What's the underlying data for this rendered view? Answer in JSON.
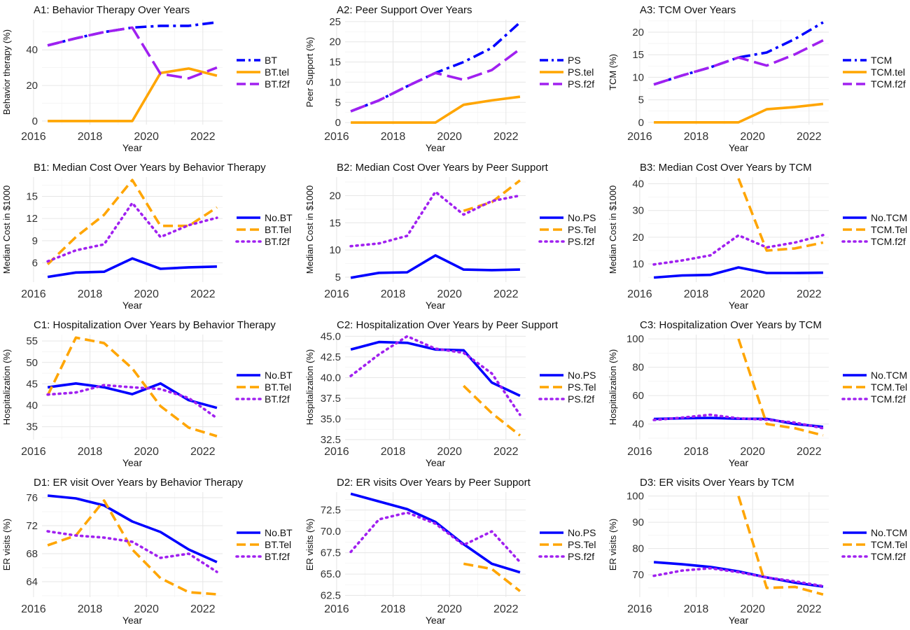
{
  "x_axis": {
    "xlim": [
      2016.3,
      2022.7
    ],
    "ticks": [
      2016,
      2018,
      2020,
      2022
    ],
    "label": "Year"
  },
  "colors": {
    "overall": "#0000ff",
    "no": "#0000ff",
    "tel": "#ffa500",
    "f2f": "#a020f0"
  },
  "chart_data": [
    {
      "type": "line",
      "title": "A1: Behavior Therapy Over Years",
      "xlabel": "Year",
      "ylabel": "Behavior therapy (%)",
      "ylim": [
        -2,
        57
      ],
      "yticks": [
        0,
        20,
        40
      ],
      "grid": true,
      "legend": "right",
      "x": [
        2016.5,
        2017.5,
        2018.5,
        2019.5,
        2020.5,
        2021.5,
        2022.5
      ],
      "series": [
        {
          "name": "BT",
          "style": "dashdot",
          "color": "#0000ff",
          "values": [
            42.5,
            46.5,
            50,
            52.5,
            53.5,
            53.5,
            55.5
          ]
        },
        {
          "name": "BT.tel",
          "style": "solid",
          "color": "#ffa500",
          "values": [
            0,
            0,
            0,
            0,
            27,
            29.5,
            25.5
          ]
        },
        {
          "name": "BT.f2f",
          "style": "longdash",
          "color": "#a020f0",
          "values": [
            42.5,
            46.5,
            50,
            52.5,
            26.5,
            24,
            30
          ]
        }
      ]
    },
    {
      "type": "line",
      "title": "A2: Peer Support Over Years",
      "xlabel": "Year",
      "ylabel": "Peer Support (%)",
      "ylim": [
        -0.5,
        25.5
      ],
      "yticks": [
        0,
        5,
        10,
        15,
        20,
        25
      ],
      "grid": true,
      "legend": "right",
      "x": [
        2016.5,
        2017.5,
        2018.5,
        2019.5,
        2020.5,
        2021.5,
        2022.5
      ],
      "series": [
        {
          "name": "PS",
          "style": "dashdot",
          "color": "#0000ff",
          "values": [
            2.8,
            5.5,
            9,
            12.3,
            15,
            18.5,
            24.8
          ]
        },
        {
          "name": "PS.tel",
          "style": "solid",
          "color": "#ffa500",
          "values": [
            0,
            0,
            0,
            0,
            4.4,
            5.5,
            6.4
          ]
        },
        {
          "name": "PS.f2f",
          "style": "longdash",
          "color": "#a020f0",
          "values": [
            2.8,
            5.5,
            9,
            12.3,
            10.6,
            13,
            18.2
          ]
        }
      ]
    },
    {
      "type": "line",
      "title": "A3: TCM Over Years",
      "xlabel": "Year",
      "ylabel": "TCM (%)",
      "ylim": [
        -0.5,
        22.8
      ],
      "yticks": [
        0,
        5,
        10,
        15,
        20
      ],
      "grid": true,
      "legend": "right",
      "x": [
        2016.5,
        2017.5,
        2018.5,
        2019.5,
        2020.5,
        2021.5,
        2022.5
      ],
      "series": [
        {
          "name": "TCM",
          "style": "dashdot",
          "color": "#0000ff",
          "values": [
            8.4,
            10.4,
            12.2,
            14.4,
            15.5,
            18.5,
            22.2
          ]
        },
        {
          "name": "TCM.tel",
          "style": "solid",
          "color": "#ffa500",
          "values": [
            0,
            0,
            0,
            0,
            2.9,
            3.4,
            4.1
          ]
        },
        {
          "name": "TCM.f2f",
          "style": "longdash",
          "color": "#a020f0",
          "values": [
            8.4,
            10.4,
            12.2,
            14.4,
            12.6,
            15.1,
            18.2
          ]
        }
      ]
    },
    {
      "type": "line",
      "title": "B1: Median Cost Over Years by Behavior Therapy",
      "xlabel": "Year",
      "ylabel": "Median Cost in $1000",
      "ylim": [
        3.4,
        17.6
      ],
      "yticks": [
        6,
        9,
        12,
        15
      ],
      "grid": true,
      "legend": "right",
      "x": [
        2016.5,
        2017.5,
        2018.5,
        2019.5,
        2020.5,
        2021.5,
        2022.5
      ],
      "series": [
        {
          "name": "No.BT",
          "style": "solid",
          "color": "#0000ff",
          "values": [
            4.1,
            4.7,
            4.8,
            6.6,
            5.2,
            5.4,
            5.5
          ]
        },
        {
          "name": "BT.Tel",
          "style": "dashed",
          "color": "#ffa500",
          "values": [
            5.8,
            9.5,
            12.5,
            17.2,
            11,
            11,
            13.5
          ]
        },
        {
          "name": "BT.f2f",
          "style": "dotted",
          "color": "#a020f0",
          "values": [
            6.2,
            7.7,
            8.5,
            14.1,
            9.5,
            11.1,
            12.1
          ]
        }
      ]
    },
    {
      "type": "line",
      "title": "B2: Median Cost Over Years by Peer Support",
      "xlabel": "Year",
      "ylabel": "Median Cost in $1000",
      "ylim": [
        4.1,
        23.4
      ],
      "yticks": [
        5,
        10,
        15,
        20
      ],
      "grid": true,
      "legend": "right",
      "x": [
        2016.5,
        2017.5,
        2018.5,
        2019.5,
        2020.5,
        2021.5,
        2022.5
      ],
      "series": [
        {
          "name": "No.PS",
          "style": "solid",
          "color": "#0000ff",
          "values": [
            4.9,
            5.8,
            5.9,
            9,
            6.4,
            6.3,
            6.4
          ]
        },
        {
          "name": "PS.Tel",
          "style": "dashed",
          "color": "#ffa500",
          "values": [
            null,
            null,
            null,
            null,
            17.2,
            18.8,
            22.8
          ]
        },
        {
          "name": "PS.f2f",
          "style": "dotted",
          "color": "#a020f0",
          "values": [
            10.7,
            11.2,
            12.6,
            20.7,
            16.5,
            19,
            20
          ]
        }
      ]
    },
    {
      "type": "line",
      "title": "B3: Median Cost Over Years by TCM",
      "xlabel": "Year",
      "ylabel": "Median Cost in $1000",
      "ylim": [
        3.2,
        42.5
      ],
      "yticks": [
        10,
        20,
        30,
        40
      ],
      "grid": true,
      "legend": "right",
      "x": [
        2016.5,
        2017.5,
        2018.5,
        2019.5,
        2020.5,
        2021.5,
        2022.5
      ],
      "series": [
        {
          "name": "No.TCM",
          "style": "solid",
          "color": "#0000ff",
          "values": [
            4.9,
            5.7,
            5.9,
            8.7,
            6.6,
            6.6,
            6.7
          ]
        },
        {
          "name": "TCM.Tel",
          "style": "dashed",
          "color": "#ffa500",
          "values": [
            null,
            null,
            null,
            42,
            15,
            15.8,
            18
          ]
        },
        {
          "name": "TCM.f2f",
          "style": "dotted",
          "color": "#a020f0",
          "values": [
            9.8,
            11.3,
            13.2,
            20.7,
            16.2,
            18,
            20.8
          ]
        }
      ]
    },
    {
      "type": "line",
      "title": "C1: Hospitalization Over Years by Behavior Therapy",
      "xlabel": "Year",
      "ylabel": "Hospitalization (%)",
      "ylim": [
        32,
        56.5
      ],
      "yticks": [
        35,
        40,
        45,
        50,
        55
      ],
      "grid": true,
      "legend": "right",
      "x": [
        2016.5,
        2017.5,
        2018.5,
        2019.5,
        2020.5,
        2021.5,
        2022.5
      ],
      "series": [
        {
          "name": "No.BT",
          "style": "solid",
          "color": "#0000ff",
          "values": [
            44.2,
            45.1,
            44.2,
            42.6,
            45.1,
            41.2,
            39.4
          ]
        },
        {
          "name": "BT.Tel",
          "style": "dashed",
          "color": "#ffa500",
          "values": [
            42.3,
            55.8,
            54.5,
            48.6,
            39.8,
            34.8,
            32.8
          ]
        },
        {
          "name": "BT.f2f",
          "style": "dotted",
          "color": "#a020f0",
          "values": [
            42.5,
            43,
            44.7,
            44.2,
            43.8,
            41.7,
            37
          ]
        }
      ]
    },
    {
      "type": "line",
      "title": "C2: Hospitalization Over Years by Peer Support",
      "xlabel": "Year",
      "ylabel": "Hospitalization (%)",
      "ylim": [
        32.5,
        45.2
      ],
      "yticks": [
        32.5,
        35.0,
        37.5,
        40.0,
        42.5,
        45.0
      ],
      "ytick_labels": [
        "32.5",
        "35.0",
        "37.5",
        "40.0",
        "42.5",
        "45.0"
      ],
      "grid": true,
      "legend": "right",
      "x": [
        2016.5,
        2017.5,
        2018.5,
        2019.5,
        2020.5,
        2021.5,
        2022.5
      ],
      "series": [
        {
          "name": "No.PS",
          "style": "solid",
          "color": "#0000ff",
          "values": [
            43.4,
            44.3,
            44.2,
            43.4,
            43.3,
            39.4,
            37.8
          ]
        },
        {
          "name": "PS.Tel",
          "style": "dashed",
          "color": "#ffa500",
          "values": [
            null,
            null,
            null,
            null,
            39,
            35.7,
            33
          ]
        },
        {
          "name": "PS.f2f",
          "style": "dotted",
          "color": "#a020f0",
          "values": [
            40.2,
            42.8,
            45,
            43.5,
            43,
            40.5,
            35.5
          ]
        }
      ]
    },
    {
      "type": "line",
      "title": "C3: Hospitalization Over Years by TCM",
      "xlabel": "Year",
      "ylabel": "Hospitalization (%)",
      "ylim": [
        29,
        103
      ],
      "yticks": [
        40,
        60,
        80,
        100
      ],
      "grid": true,
      "legend": "right",
      "x": [
        2016.5,
        2017.5,
        2018.5,
        2019.5,
        2020.5,
        2021.5,
        2022.5
      ],
      "series": [
        {
          "name": "No.TCM",
          "style": "solid",
          "color": "#0000ff",
          "values": [
            43.5,
            44,
            44.3,
            43.7,
            43.6,
            40,
            38
          ]
        },
        {
          "name": "TCM.Tel",
          "style": "dashed",
          "color": "#ffa500",
          "values": [
            null,
            null,
            null,
            100,
            40,
            37,
            32
          ]
        },
        {
          "name": "TCM.f2f",
          "style": "dotted",
          "color": "#a020f0",
          "values": [
            42.8,
            44.5,
            46.5,
            44,
            43,
            41,
            37
          ]
        }
      ]
    },
    {
      "type": "line",
      "title": "D1: ER visit Over Years by Behavior Therapy",
      "xlabel": "Year",
      "ylabel": "ER visits (%)",
      "ylim": [
        61.8,
        76.8
      ],
      "yticks": [
        64,
        68,
        72,
        76
      ],
      "grid": true,
      "legend": "right",
      "x": [
        2016.5,
        2017.5,
        2018.5,
        2019.5,
        2020.5,
        2021.5,
        2022.5
      ],
      "series": [
        {
          "name": "No.BT",
          "style": "solid",
          "color": "#0000ff",
          "values": [
            76.3,
            75.9,
            74.9,
            72.6,
            71.1,
            68.6,
            66.8
          ]
        },
        {
          "name": "BT.Tel",
          "style": "dashed",
          "color": "#ffa500",
          "values": [
            69.2,
            70.6,
            75.6,
            68.6,
            64.5,
            62.5,
            62.2
          ]
        },
        {
          "name": "BT.f2f",
          "style": "dotted",
          "color": "#a020f0",
          "values": [
            71.2,
            70.6,
            70.3,
            69.7,
            67.4,
            68,
            65.4
          ]
        }
      ]
    },
    {
      "type": "line",
      "title": "D2: ER visits Over Years by Peer Support",
      "xlabel": "Year",
      "ylabel": "ER visits (%)",
      "ylim": [
        62.3,
        74.6
      ],
      "yticks": [
        62.5,
        65.0,
        67.5,
        70.0,
        72.5
      ],
      "ytick_labels": [
        "62.5",
        "65.0",
        "67.5",
        "70.0",
        "72.5"
      ],
      "grid": true,
      "legend": "right",
      "x": [
        2016.5,
        2017.5,
        2018.5,
        2019.5,
        2020.5,
        2021.5,
        2022.5
      ],
      "series": [
        {
          "name": "No.PS",
          "style": "solid",
          "color": "#0000ff",
          "values": [
            74.4,
            73.5,
            72.6,
            71.1,
            68.5,
            66.2,
            65.2
          ]
        },
        {
          "name": "PS.Tel",
          "style": "dashed",
          "color": "#ffa500",
          "values": [
            null,
            null,
            null,
            null,
            66.2,
            65.6,
            63
          ]
        },
        {
          "name": "PS.f2f",
          "style": "dotted",
          "color": "#a020f0",
          "values": [
            67.6,
            71.4,
            72.2,
            70.9,
            68.4,
            70,
            66.4
          ]
        }
      ]
    },
    {
      "type": "line",
      "title": "D3: ER visits Over Years by TCM",
      "xlabel": "Year",
      "ylabel": "ER visits (%)",
      "ylim": [
        61.5,
        101.5
      ],
      "yticks": [
        70,
        80,
        90,
        100
      ],
      "grid": true,
      "legend": "right",
      "x": [
        2016.5,
        2017.5,
        2018.5,
        2019.5,
        2020.5,
        2021.5,
        2022.5
      ],
      "series": [
        {
          "name": "No.TCM",
          "style": "solid",
          "color": "#0000ff",
          "values": [
            74.8,
            74,
            73,
            71.3,
            69,
            67,
            65.5
          ]
        },
        {
          "name": "TCM.Tel",
          "style": "dashed",
          "color": "#ffa500",
          "values": [
            null,
            null,
            null,
            100,
            65,
            65.4,
            62.5
          ]
        },
        {
          "name": "TCM.f2f",
          "style": "dotted",
          "color": "#a020f0",
          "values": [
            69.6,
            71.6,
            72.5,
            71,
            69,
            67.5,
            65.7
          ]
        }
      ]
    }
  ]
}
